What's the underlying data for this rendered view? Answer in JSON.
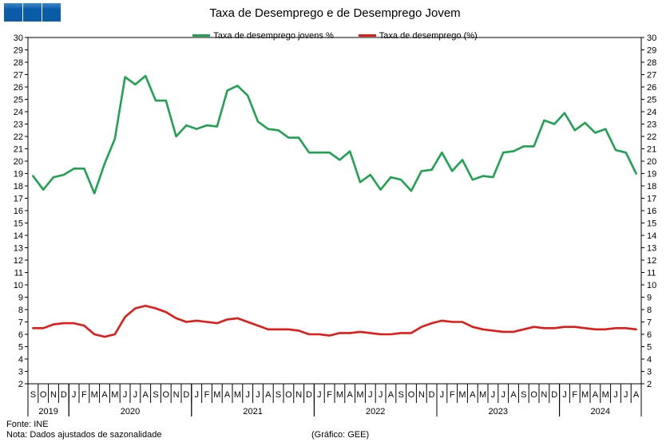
{
  "title": "Taxa de Desemprego e de Desemprego Jovem",
  "footer": {
    "source": "Fonte: INE",
    "note": "Nota: Dados ajustados de sazonalidade",
    "credit": "(Gráfico: GEE)"
  },
  "chart_data": {
    "type": "line",
    "title": "Taxa de Desemprego e de Desemprego Jovem",
    "ylim": [
      2,
      30
    ],
    "y_tick_step": 1,
    "grid": false,
    "legend_position": "top-center",
    "x": [
      "S",
      "O",
      "N",
      "D",
      "J",
      "F",
      "M",
      "A",
      "M",
      "J",
      "J",
      "A",
      "S",
      "O",
      "N",
      "D",
      "J",
      "F",
      "M",
      "A",
      "M",
      "J",
      "J",
      "A",
      "S",
      "O",
      "N",
      "D",
      "J",
      "F",
      "M",
      "A",
      "M",
      "J",
      "J",
      "A",
      "S",
      "O",
      "N",
      "D",
      "J",
      "F",
      "M",
      "A",
      "M",
      "J",
      "J",
      "A",
      "S",
      "O",
      "N",
      "D",
      "J",
      "F",
      "M",
      "A",
      "M",
      "J",
      "J",
      "A"
    ],
    "year_groups": [
      {
        "label": "2019",
        "start": 0,
        "count": 4
      },
      {
        "label": "2020",
        "start": 4,
        "count": 12
      },
      {
        "label": "2021",
        "start": 16,
        "count": 12
      },
      {
        "label": "2022",
        "start": 28,
        "count": 12
      },
      {
        "label": "2023",
        "start": 40,
        "count": 12
      },
      {
        "label": "2024",
        "start": 52,
        "count": 8
      }
    ],
    "series": [
      {
        "name": "Taxa de desemprego jovens %",
        "color": "#1fa251",
        "values": [
          18.8,
          17.7,
          18.7,
          18.9,
          19.4,
          19.4,
          17.4,
          19.8,
          21.8,
          26.8,
          26.2,
          26.9,
          24.9,
          24.9,
          22.0,
          22.9,
          22.6,
          22.9,
          22.8,
          25.7,
          26.1,
          25.3,
          23.2,
          22.6,
          22.5,
          21.9,
          21.9,
          20.7,
          20.7,
          20.7,
          20.1,
          20.8,
          18.3,
          18.9,
          17.7,
          18.7,
          18.5,
          17.6,
          19.2,
          19.3,
          20.7,
          19.2,
          20.1,
          18.5,
          18.8,
          18.7,
          20.7,
          20.8,
          21.2,
          21.2,
          23.3,
          23.0,
          23.9,
          22.5,
          23.1,
          22.3,
          22.6,
          20.9,
          20.7,
          19.0
        ]
      },
      {
        "name": "Taxa de desemprego (%)",
        "color": "#e31b17",
        "values": [
          6.5,
          6.5,
          6.8,
          6.9,
          6.9,
          6.7,
          6.0,
          5.8,
          6.0,
          7.4,
          8.1,
          8.3,
          8.1,
          7.8,
          7.3,
          7.0,
          7.1,
          7.0,
          6.9,
          7.2,
          7.3,
          7.0,
          6.7,
          6.4,
          6.4,
          6.4,
          6.3,
          6.0,
          6.0,
          5.9,
          6.1,
          6.1,
          6.2,
          6.1,
          6.0,
          6.0,
          6.1,
          6.1,
          6.6,
          6.9,
          7.1,
          7.0,
          7.0,
          6.6,
          6.4,
          6.3,
          6.2,
          6.2,
          6.4,
          6.6,
          6.5,
          6.5,
          6.6,
          6.6,
          6.5,
          6.4,
          6.4,
          6.5,
          6.5,
          6.4
        ]
      }
    ]
  }
}
